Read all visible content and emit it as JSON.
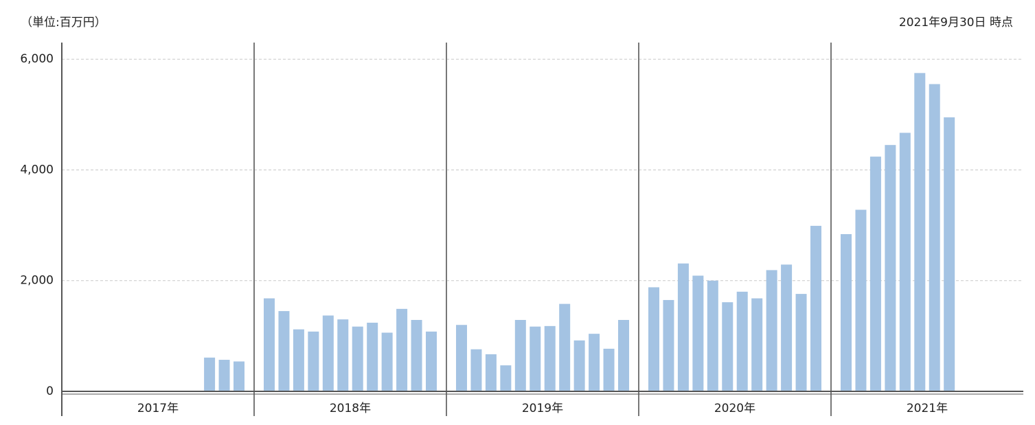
{
  "chart_data": {
    "type": "bar",
    "unit_label": "（単位:百万円）",
    "as_of": "2021年9月30日 時点",
    "color": "#a4c3e3",
    "ylim": [
      0,
      6300
    ],
    "yticks": [
      0,
      {
        "value": 2000,
        "label": "2,000"
      },
      {
        "value": 4000,
        "label": "4,000"
      },
      {
        "value": 6000,
        "label": "6,000"
      }
    ],
    "grid": true,
    "groups": [
      {
        "label": "2017年",
        "values": [
          null,
          null,
          null,
          null,
          null,
          null,
          null,
          null,
          null,
          610,
          570,
          540
        ]
      },
      {
        "label": "2018年",
        "values": [
          1680,
          1450,
          1120,
          1080,
          1370,
          1300,
          1170,
          1240,
          1060,
          1490,
          1290,
          1080
        ]
      },
      {
        "label": "2019年",
        "values": [
          1200,
          760,
          670,
          470,
          1290,
          1170,
          1180,
          1580,
          920,
          1040,
          770,
          1290
        ]
      },
      {
        "label": "2020年",
        "values": [
          1880,
          1650,
          2310,
          2090,
          2000,
          1610,
          1800,
          1680,
          2190,
          2290,
          1760,
          2990
        ]
      },
      {
        "label": "2021年",
        "values": [
          2840,
          3280,
          4240,
          4450,
          4670,
          5750,
          5550,
          4950,
          null,
          null,
          null,
          null
        ]
      }
    ]
  }
}
